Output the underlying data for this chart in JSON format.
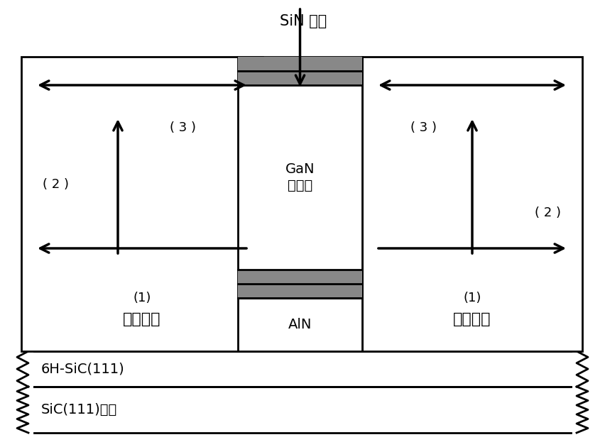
{
  "title_text": "SiN 掩膜",
  "bg_color": "#ffffff",
  "line_color": "#000000",
  "gan_label": "GaN\n种子区",
  "aln_label": "AlN",
  "left_label1": "(1)\n悬挂生长",
  "right_label1": "(1)\n悬挂生长",
  "label2_left": "( 2 )",
  "label3_left": "( 3 )",
  "label2_right": "( 2 )",
  "label3_right": "( 3 )",
  "sic6h_label": "6H-SiC(111)",
  "sic_label": "SiC(111)基片"
}
